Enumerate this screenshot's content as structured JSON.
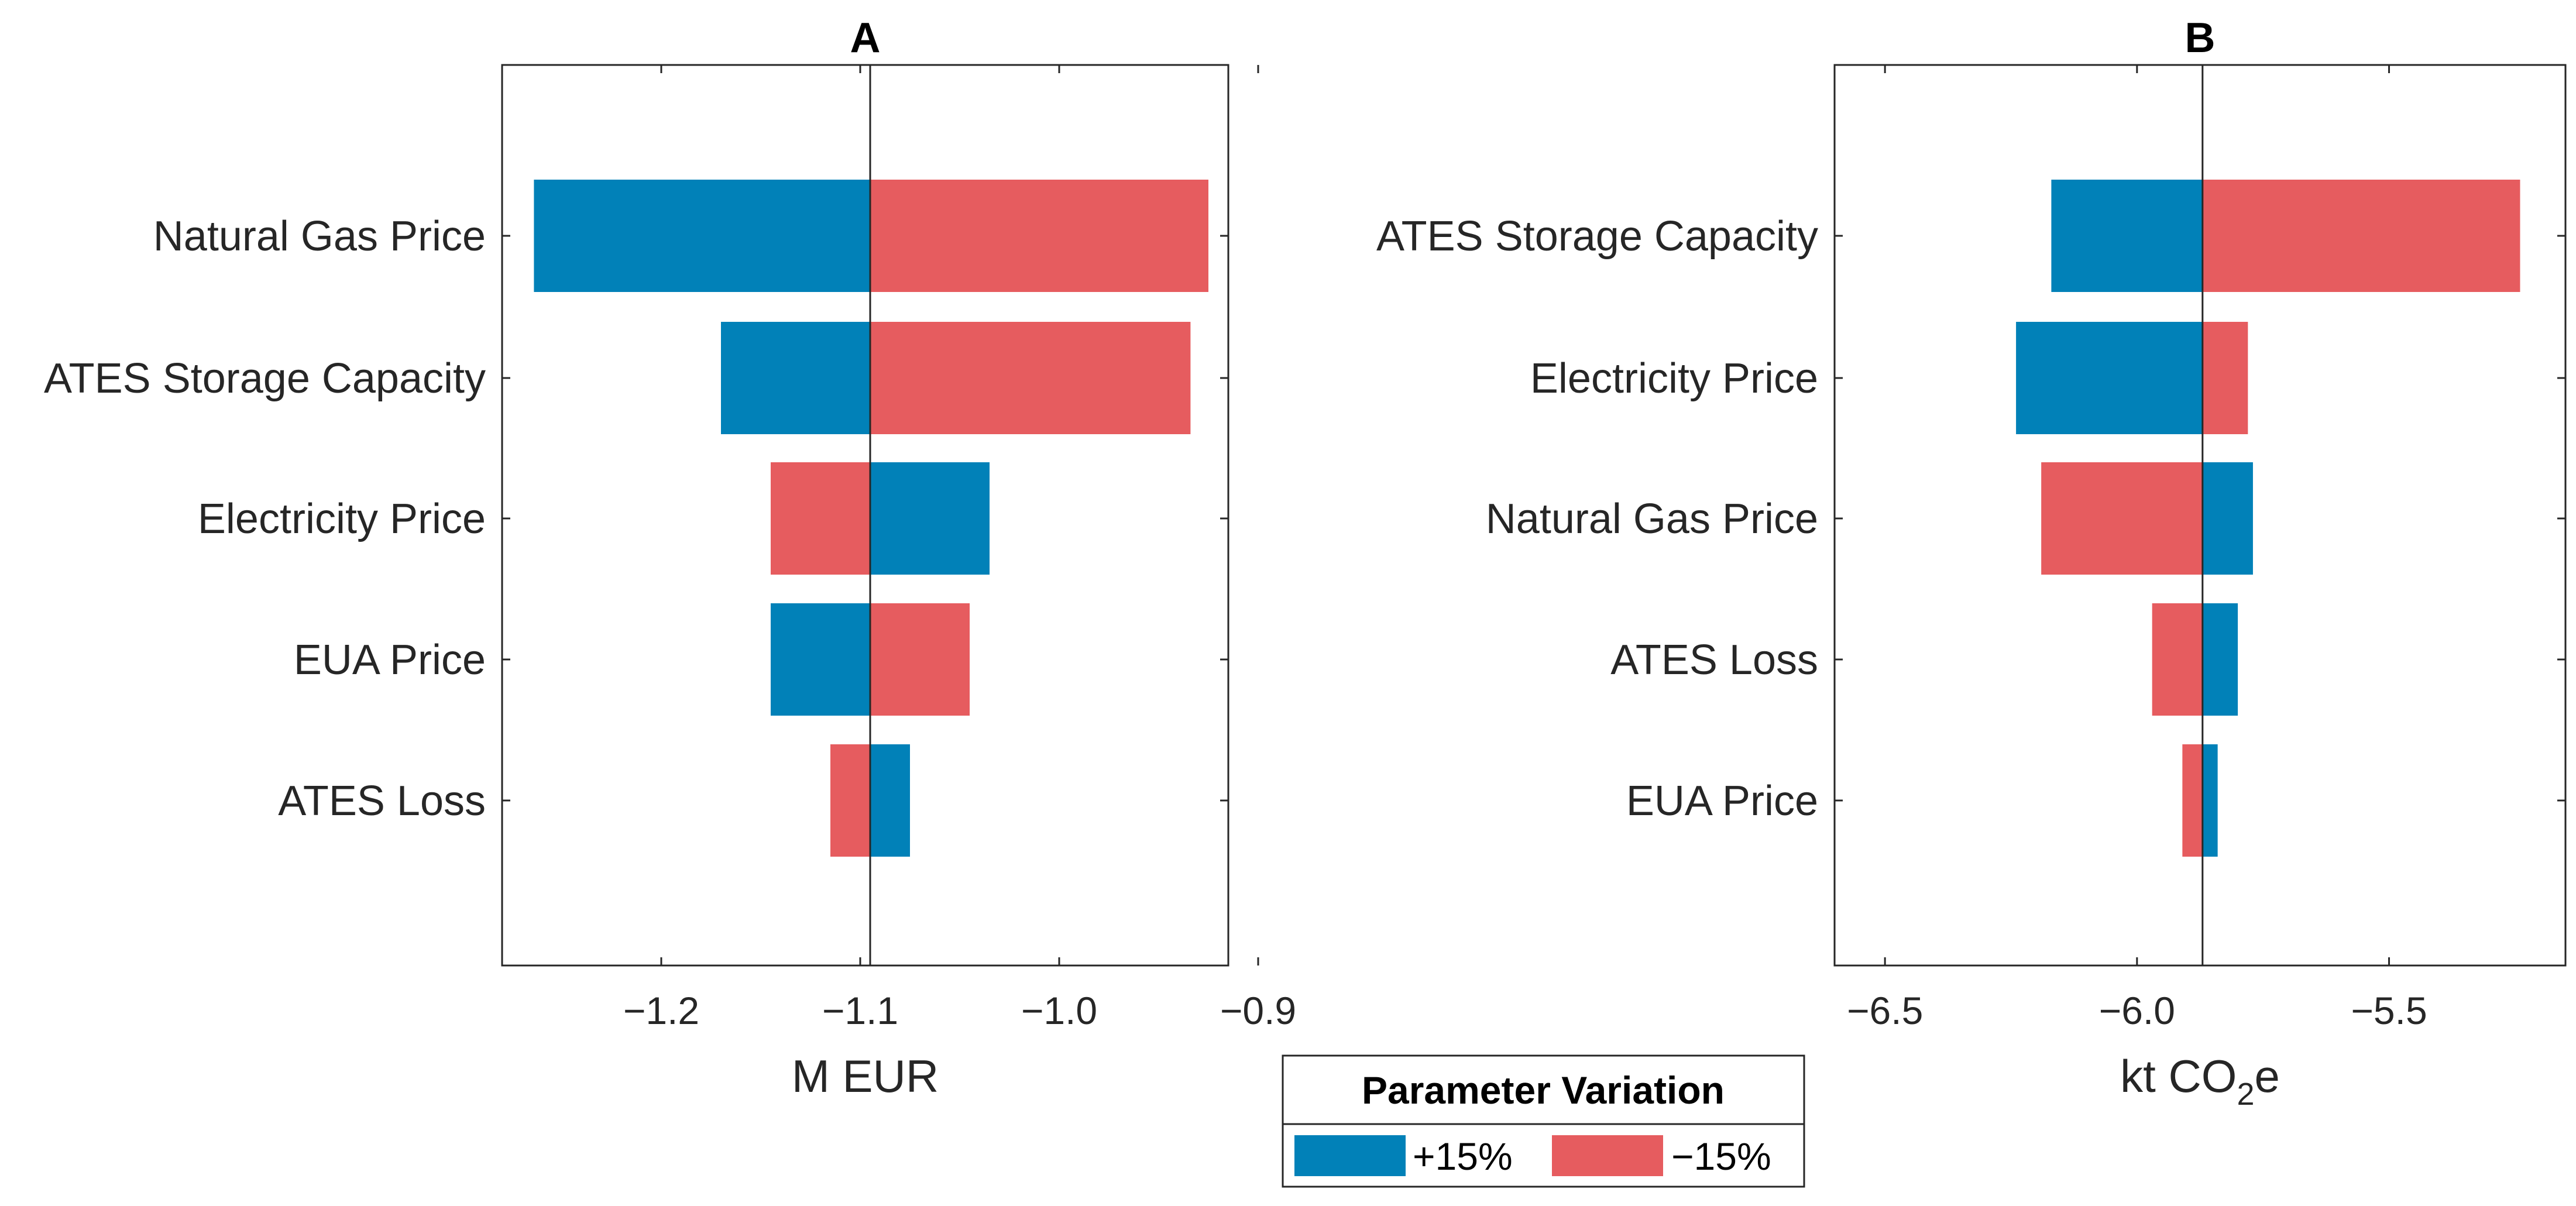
{
  "colors": {
    "plus": "#0181b8",
    "minus": "#e65c5f",
    "axis": "#262626"
  },
  "legend": {
    "title": "Parameter Variation",
    "entries": [
      {
        "label": "+15%",
        "color": "#0181b8"
      },
      {
        "label": "−15%",
        "color": "#e65c5f"
      }
    ]
  },
  "chart_data": [
    {
      "type": "bar",
      "orientation": "horizontal",
      "title": "A",
      "xlabel": "M EUR",
      "xlim": [
        -1.28,
        -0.915
      ],
      "xticks": [
        -1.2,
        -1.1,
        -1.0,
        -0.9
      ],
      "xtick_labels": [
        "−1.2",
        "−1.1",
        "−1.0",
        "−0.9"
      ],
      "baseline": -1.095,
      "categories": [
        "Natural Gas Price",
        "ATES Storage Capacity",
        "Electricity Price",
        "EUA Price",
        "ATES Loss"
      ],
      "series": [
        {
          "name": "+15%",
          "values": [
            -1.264,
            -1.17,
            -1.035,
            -1.145,
            -1.075
          ]
        },
        {
          "name": "−15%",
          "values": [
            -0.925,
            -0.934,
            -1.145,
            -1.045,
            -1.115
          ]
        }
      ]
    },
    {
      "type": "bar",
      "orientation": "horizontal",
      "title": "B",
      "xlabel": "kt CO",
      "xlabel_sub": "2",
      "xlabel_tail": "e",
      "xlim": [
        -6.6,
        -5.15
      ],
      "xticks": [
        -6.5,
        -6.0,
        -5.5
      ],
      "xtick_labels": [
        "−6.5",
        "−6.0",
        "−5.5"
      ],
      "baseline": -5.87,
      "categories": [
        "ATES Storage Capacity",
        "Electricity Price",
        "Natural Gas Price",
        "ATES Loss",
        "EUA Price"
      ],
      "series": [
        {
          "name": "+15%",
          "values": [
            -6.17,
            -6.24,
            -5.77,
            -5.8,
            -5.84
          ]
        },
        {
          "name": "−15%",
          "values": [
            -5.24,
            -5.78,
            -6.19,
            -5.97,
            -5.91
          ]
        }
      ]
    }
  ]
}
